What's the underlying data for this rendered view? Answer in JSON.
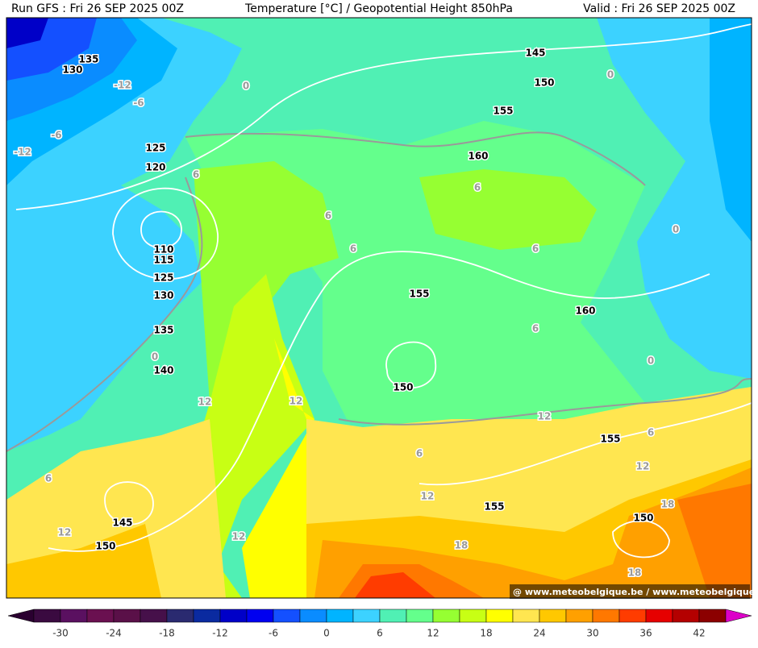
{
  "header": {
    "run": "Run GFS : Fri 26 SEP 2025 00Z",
    "title": "Temperature [°C] / Geopotential Height 850hPa",
    "valid": "Valid : Fri 26 SEP 2025 00Z"
  },
  "contours": {
    "height_labels": [
      135,
      130,
      145,
      150,
      155,
      160,
      125,
      120,
      110,
      115,
      125,
      130,
      135,
      140,
      155,
      160,
      150,
      155,
      155,
      150,
      145,
      150
    ],
    "temperature_labels": [
      0,
      -12,
      -6,
      -6,
      -12,
      6,
      6,
      6,
      6,
      6,
      0,
      6,
      0,
      0,
      12,
      12,
      12,
      6,
      6,
      6,
      12,
      12,
      18,
      12,
      12,
      18,
      18,
      0
    ]
  },
  "colorbar": {
    "ticks": [
      -30,
      -24,
      -18,
      -12,
      -6,
      0,
      6,
      12,
      18,
      24,
      30,
      36,
      42
    ],
    "colors": [
      "#3a0a40",
      "#5a1060",
      "#6a1050",
      "#5a1048",
      "#46104a",
      "#2a2a70",
      "#0a2aa0",
      "#0000c8",
      "#0000f0",
      "#1450ff",
      "#0a8cff",
      "#00b4ff",
      "#3cd2ff",
      "#50f0b4",
      "#64ff8c",
      "#96ff32",
      "#c8ff14",
      "#ffff00",
      "#ffe650",
      "#ffc800",
      "#ffa000",
      "#ff7800",
      "#ff3c00",
      "#e60000",
      "#b40000",
      "#8c0000"
    ],
    "low_color": "#2a0030",
    "high_color": "#dc00c8"
  },
  "watermark": "@ www.meteobelgique.be / www.meteobelgique.be"
}
